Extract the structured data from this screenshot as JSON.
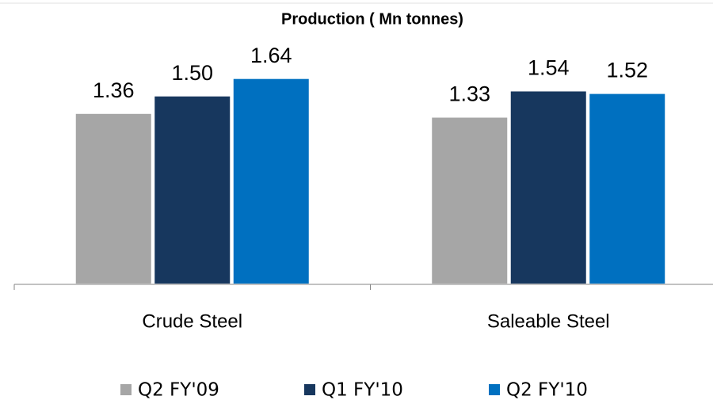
{
  "chart_data": {
    "type": "bar",
    "title": "Production ( Mn tonnes)",
    "categories": [
      "Crude Steel",
      "Saleable Steel"
    ],
    "series": [
      {
        "name": "Q2 FY'09",
        "color": "#a6a6a6",
        "values": [
          1.36,
          1.33
        ],
        "value_labels": [
          "1.36",
          "1.33"
        ]
      },
      {
        "name": "Q1 FY'10",
        "color": "#17375e",
        "values": [
          1.5,
          1.54
        ],
        "value_labels": [
          "1.50",
          "1.54"
        ]
      },
      {
        "name": "Q2 FY'10",
        "color": "#0070c0",
        "values": [
          1.64,
          1.52
        ],
        "value_labels": [
          "1.64",
          "1.52"
        ]
      }
    ],
    "ylim": [
      0,
      2
    ],
    "legend": "bottom"
  }
}
